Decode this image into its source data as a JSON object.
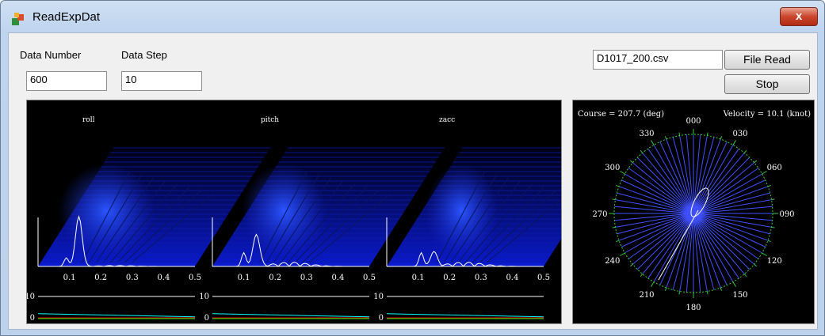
{
  "window": {
    "title": "ReadExpDat",
    "close_glyph": "x"
  },
  "inputs": {
    "data_number": {
      "label": "Data Number",
      "value": "600"
    },
    "data_step": {
      "label": "Data Step",
      "value": "10"
    },
    "file_name": {
      "value": "D1017_200.csv"
    }
  },
  "buttons": {
    "file_read": "File Read",
    "stop": "Stop"
  },
  "spectra": {
    "panels": [
      {
        "title": "roll",
        "peak": 0.13,
        "peak_height": 0.7
      },
      {
        "title": "pitch",
        "peak": 0.14,
        "peak_height": 0.45
      },
      {
        "title": "zacc",
        "peak": 0.15,
        "peak_height": 0.2
      }
    ],
    "x_ticks": [
      "0.1",
      "0.2",
      "0.3",
      "0.4",
      "0.5"
    ],
    "level_max": "10",
    "level_min": "0",
    "level_series": [
      {
        "color": "#00ffff",
        "value": 1.5
      },
      {
        "color": "#00ff00",
        "value": 0
      },
      {
        "color": "#ff0000",
        "value": 0
      }
    ]
  },
  "compass": {
    "course_text": "Course = 207.7 (deg)",
    "velocity_text": "Velocity = 10.1 (knot)",
    "course_deg": 207.7,
    "labels": [
      "000",
      "030",
      "060",
      "090",
      "120",
      "150",
      "180",
      "210",
      "240",
      "270",
      "300",
      "330"
    ],
    "colors": {
      "ring": "#33cc33",
      "spokes": "#4050ff",
      "track": "#ffffff"
    }
  }
}
